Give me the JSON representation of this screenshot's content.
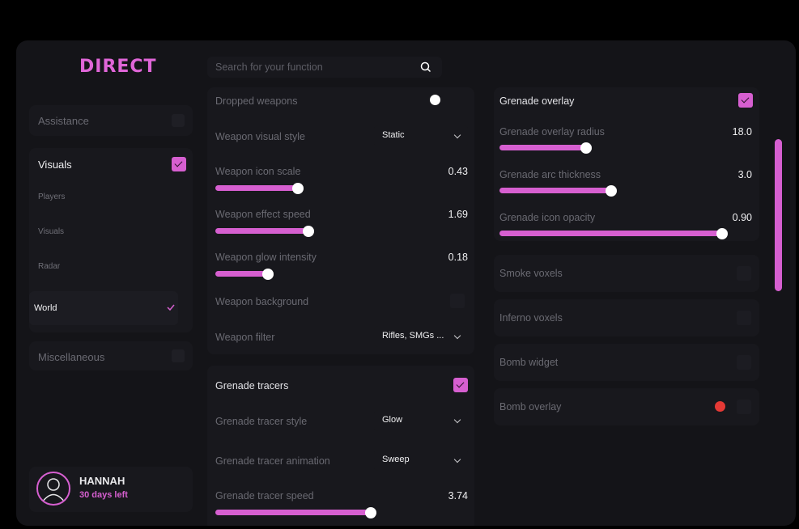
{
  "app": {
    "logo": "DIRECT"
  },
  "sidebar": {
    "sections": [
      {
        "label": "Assistance"
      },
      {
        "label": "Visuals"
      },
      {
        "label": "Miscellaneous"
      }
    ],
    "sub_items": [
      "Players",
      "Visuals",
      "Radar",
      "World"
    ]
  },
  "user": {
    "name": "HANNAH",
    "status": "30 days left"
  },
  "search": {
    "placeholder": "Search for your function"
  },
  "weapons": {
    "dropped": {
      "label": "Dropped weapons"
    },
    "visual_style": {
      "label": "Weapon visual style",
      "value": "Static"
    },
    "icon_scale": {
      "label": "Weapon icon scale",
      "value": "0.43",
      "fraction": 0.33
    },
    "effect_speed": {
      "label": "Weapon effect speed",
      "value": "1.69",
      "fraction": 0.37
    },
    "glow_intensity": {
      "label": "Weapon glow intensity",
      "value": "0.18",
      "fraction": 0.21
    },
    "background": {
      "label": "Weapon background"
    },
    "filter": {
      "label": "Weapon filter",
      "value": "Rifles, SMGs ..."
    }
  },
  "grenade_tracers": {
    "title": "Grenade tracers",
    "style": {
      "label": "Grenade tracer style",
      "value": "Glow"
    },
    "animation": {
      "label": "Grenade tracer animation",
      "value": "Sweep"
    },
    "speed": {
      "label": "Grenade tracer speed",
      "value": "3.74",
      "fraction": 0.62
    }
  },
  "grenade_overlay": {
    "title": "Grenade overlay",
    "radius": {
      "label": "Grenade overlay radius",
      "value": "18.0",
      "fraction": 0.35
    },
    "arc_thickness": {
      "label": "Grenade arc thickness",
      "value": "3.0",
      "fraction": 0.45
    },
    "icon_opacity": {
      "label": "Grenade icon opacity",
      "value": "0.90",
      "fraction": 0.9
    }
  },
  "world_toggles": [
    {
      "label": "Smoke voxels"
    },
    {
      "label": "Inferno voxels"
    },
    {
      "label": "Bomb widget"
    },
    {
      "label": "Bomb overlay",
      "color": "#e53935"
    }
  ],
  "colors": {
    "accent": "#d65fd0"
  }
}
